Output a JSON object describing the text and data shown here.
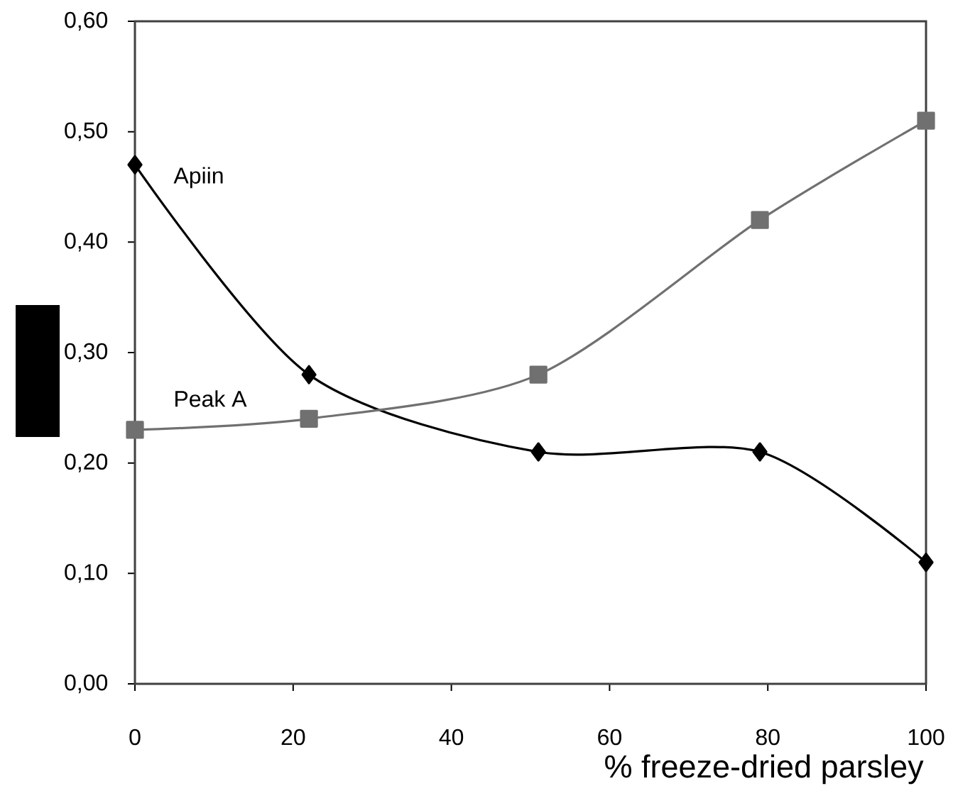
{
  "chart_data": {
    "type": "line",
    "xlabel": "% freeze-dried parsley",
    "x": [
      0,
      22,
      51,
      79,
      100
    ],
    "xlim": [
      0,
      100
    ],
    "xticks": [
      0,
      20,
      40,
      60,
      80,
      100
    ],
    "ylim": [
      0,
      0.6
    ],
    "yticks": [
      {
        "value": 0,
        "label": "0,00"
      },
      {
        "value": 0.1,
        "label": "0,10"
      },
      {
        "value": 0.2,
        "label": "0,20"
      },
      {
        "value": 0.3,
        "label": "0,30"
      },
      {
        "value": 0.4,
        "label": "0,40"
      },
      {
        "value": 0.5,
        "label": "0,50"
      },
      {
        "value": 0.6,
        "label": "0,60"
      }
    ],
    "series": [
      {
        "name": "Apiin",
        "color": "#000000",
        "marker": "diamond",
        "values": [
          0.47,
          0.28,
          0.21,
          0.21,
          0.11
        ]
      },
      {
        "name": "Peak A",
        "color": "#707070",
        "marker": "square",
        "values": [
          0.23,
          0.24,
          0.28,
          0.42,
          0.51
        ]
      }
    ]
  }
}
